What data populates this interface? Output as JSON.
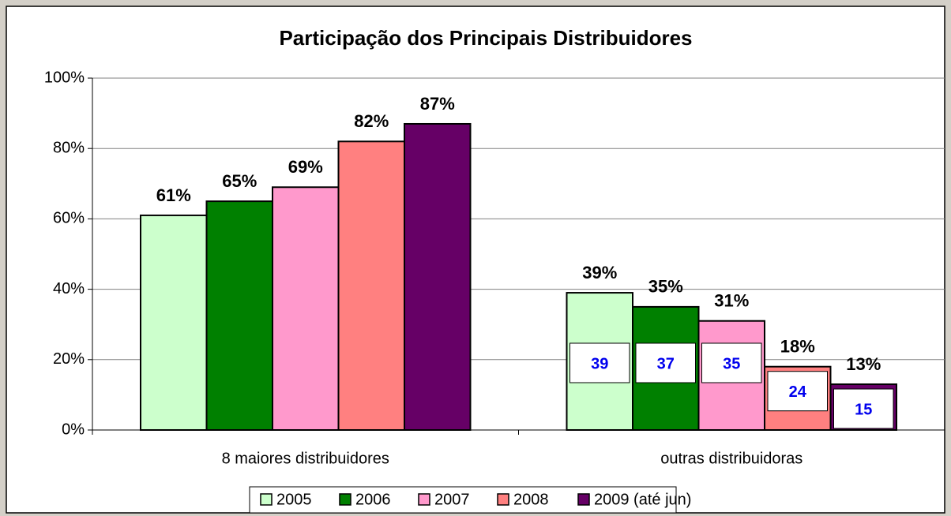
{
  "chart_data": {
    "type": "bar",
    "title": "Participação dos Principais Distribuidores",
    "categories": [
      "8 maiores distribuidores",
      "outras distribuidoras"
    ],
    "series": [
      {
        "name": "2005",
        "color": "#ccffcc",
        "values": [
          61,
          39
        ],
        "value_labels": [
          "61%",
          "39%"
        ]
      },
      {
        "name": "2006",
        "color": "#008000",
        "values": [
          65,
          35
        ],
        "value_labels": [
          "65%",
          "35%"
        ]
      },
      {
        "name": "2007",
        "color": "#ff99cc",
        "values": [
          69,
          31
        ],
        "value_labels": [
          "69%",
          "31%"
        ]
      },
      {
        "name": "2008",
        "color": "#ff8080",
        "values": [
          82,
          18
        ],
        "value_labels": [
          "82%",
          "18%"
        ]
      },
      {
        "name": "2009 (até jun)",
        "color": "#660066",
        "values": [
          87,
          13
        ],
        "value_labels": [
          "87%",
          "13%"
        ]
      }
    ],
    "counts": [
      39,
      37,
      35,
      24,
      15
    ],
    "ylim": [
      0,
      100
    ],
    "yticks": [
      {
        "value": 0,
        "label": "0%"
      },
      {
        "value": 20,
        "label": "20%"
      },
      {
        "value": 40,
        "label": "40%"
      },
      {
        "value": 60,
        "label": "60%"
      },
      {
        "value": 80,
        "label": "80%"
      },
      {
        "value": 100,
        "label": "100%"
      }
    ],
    "grid": true,
    "legend": "bottom"
  }
}
